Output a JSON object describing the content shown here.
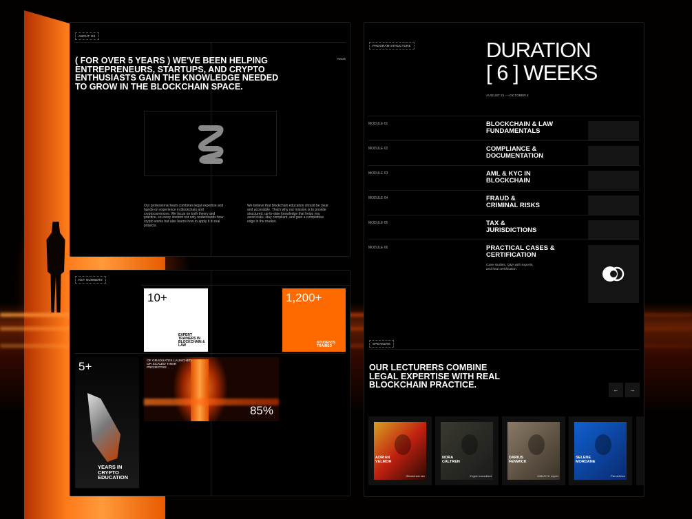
{
  "about": {
    "tag": "ABOUT US",
    "headline": "( FOR OVER 5 YEARS ) WE'VE BEEN HELPING\nENTREPRENEURS, STARTUPS, AND CRYPTO\nENTHUSIASTS GAIN THE KNOWLEDGE NEEDED\nTO GROW IN THE BLOCKCHAIN SPACE.",
    "year": "#2025",
    "logo_icon": "chain-link-logo-icon",
    "para1": "Our professional team combines legal expertise and hands-on experience in blockchain and cryptocurrencies. We focus on both theory and practice, so every student not only understands how crypto works but also learns how to apply it in real projects.",
    "para2": "We believe that blockchain education should be clear and accessible. That's why our mission is to provide structured, up-to-date knowledge that helps you avoid risks, stay compliant, and gain a competitive edge in the market."
  },
  "numbers": {
    "tag": "KEY NUMBERS",
    "trainers": {
      "value": "10+",
      "label": "EXPERT TRAINERS IN BLOCKCHAIN & LAW"
    },
    "students": {
      "value": "1,200+",
      "label": "STUDENTS TRAINED"
    },
    "years": {
      "value": "5+",
      "label": "YEARS IN CRYPTO EDUCATION"
    },
    "graduates": {
      "value": "85%",
      "label": "OF GRADUATES LAUNCHED OR SCALED THEIR PROJECTSE"
    },
    "accent": "#ff6a00"
  },
  "program": {
    "tag": "PROGRAM STRUCTURE",
    "title_line1": "DURATION",
    "title_line2": "[ 6 ] WEEKS",
    "dates": "AUGUST 21 — OCTOBER 2",
    "modules": [
      {
        "label": "MODULE 01",
        "title": "BLOCKCHAIN & LAW\nFUNDAMENTALS"
      },
      {
        "label": "MODULE 02",
        "title": "COMPLIANCE &\nDOCUMENTATION"
      },
      {
        "label": "MODULE 03",
        "title": "AML & KYC IN\nBLOCKCHAIN"
      },
      {
        "label": "MODULE 04",
        "title": "FRAUD &\nCRIMINAL RISKS"
      },
      {
        "label": "MODULE 05",
        "title": "TAX &\nJURISDICTIONS"
      },
      {
        "label": "MODULE 06",
        "title": "PRACTICAL CASES &\nCERTIFICATION",
        "desc": "Case studies, Q&A with experts,\nand final certification."
      }
    ]
  },
  "speakers": {
    "tag": "SPEAKERS",
    "headline": "OUR LECTURERS COMBINE\nLEGAL EXPERTISE WITH REAL\nBLOCKCHAIN PRACTICE.",
    "prev": "←",
    "next": "→",
    "list": [
      {
        "name": "ADRIAN\nVELMOR",
        "role": "/Blockchain law"
      },
      {
        "name": "NORA\nCALTREN",
        "role": "/Crypto consultant"
      },
      {
        "name": "DARIUS\nFENWICK",
        "role": "/AML/KYC expert"
      },
      {
        "name": "SELENE\nMORDANE",
        "role": "/Tax advisor"
      }
    ]
  }
}
